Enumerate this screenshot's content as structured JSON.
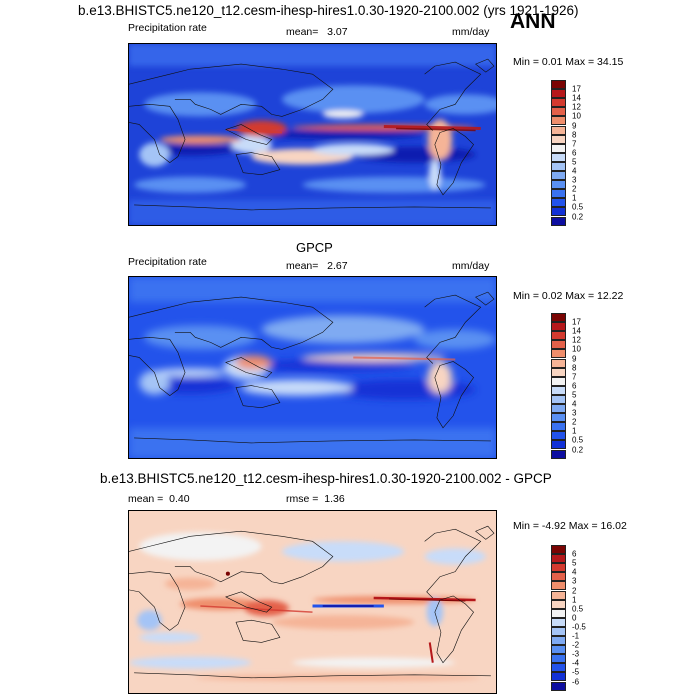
{
  "season": "ANN",
  "units": "mm/day",
  "palettes": {
    "absolute": [
      "#0d0ea0",
      "#1231d6",
      "#2353eb",
      "#3a72f0",
      "#5a90f2",
      "#7faaf2",
      "#a4c4f6",
      "#c8dcf9",
      "#f3f3f3",
      "#f8d5c2",
      "#f5b497",
      "#ef8e6c",
      "#e4614a",
      "#d33a2f",
      "#b5181b",
      "#7a0403"
    ],
    "difference": [
      "#0d0ea0",
      "#1231d6",
      "#2353eb",
      "#3a72f0",
      "#5a90f2",
      "#7faaf2",
      "#a4c4f6",
      "#c8dcf9",
      "#f3f3f3",
      "#f8d5c2",
      "#f5b497",
      "#ef8e6c",
      "#e4614a",
      "#d33a2f",
      "#b5181b",
      "#7a0403"
    ]
  },
  "panels": [
    {
      "title": "b.e13.BHISTC5.ne120_t12.cesm-ihesp-hires1.0.30-1920-2100.002 (yrs 1921-1926)",
      "left_label": "Precipitation rate",
      "stat_label": "mean=",
      "stat_value": "3.07",
      "right_label": "mm/day",
      "minmax": "Min =   0.01 Max =  34.15",
      "levels": [
        "17",
        "14",
        "12",
        "10",
        "9",
        "8",
        "7",
        "6",
        "5",
        "4",
        "3",
        "2",
        "1",
        "0.5",
        "0.2"
      ]
    },
    {
      "title": "GPCP",
      "left_label": "Precipitation rate",
      "stat_label": "mean=",
      "stat_value": "2.67",
      "right_label": "mm/day",
      "minmax": "Min =   0.02 Max =  12.22",
      "levels": [
        "17",
        "14",
        "12",
        "10",
        "9",
        "8",
        "7",
        "6",
        "5",
        "4",
        "3",
        "2",
        "1",
        "0.5",
        "0.2"
      ]
    },
    {
      "title": "b.e13.BHISTC5.ne120_t12.cesm-ihesp-hires1.0.30-1920-2100.002 - GPCP",
      "left_label": "mean =",
      "left_value": "0.40",
      "stat_label": "rmse =",
      "stat_value": "1.36",
      "minmax": "Min =  -4.92 Max =  16.02",
      "levels": [
        "6",
        "5",
        "4",
        "3",
        "2",
        "1",
        "0.5",
        "0",
        "-0.5",
        "-1",
        "-2",
        "-3",
        "-4",
        "-5",
        "-6"
      ]
    }
  ],
  "chart_data": [
    {
      "type": "heatmap",
      "title": "b.e13.BHISTC5.ne120_t12.cesm-ihesp-hires1.0.30-1920-2100.002 (yrs 1921-1926)",
      "variable": "Precipitation rate",
      "units": "mm/day",
      "mean": 3.07,
      "min": 0.01,
      "max": 34.15,
      "contour_levels": [
        0.2,
        0.5,
        1,
        2,
        3,
        4,
        5,
        6,
        7,
        8,
        9,
        10,
        12,
        14,
        17
      ]
    },
    {
      "type": "heatmap",
      "title": "GPCP",
      "variable": "Precipitation rate",
      "units": "mm/day",
      "mean": 2.67,
      "min": 0.02,
      "max": 12.22,
      "contour_levels": [
        0.2,
        0.5,
        1,
        2,
        3,
        4,
        5,
        6,
        7,
        8,
        9,
        10,
        12,
        14,
        17
      ]
    },
    {
      "type": "heatmap",
      "title": "b.e13.BHISTC5.ne120_t12.cesm-ihesp-hires1.0.30-1920-2100.002 - GPCP",
      "mean": 0.4,
      "rmse": 1.36,
      "min": -4.92,
      "max": 16.02,
      "contour_levels": [
        -6,
        -5,
        -4,
        -3,
        -2,
        -1,
        -0.5,
        0,
        0.5,
        1,
        2,
        3,
        4,
        5,
        6
      ]
    }
  ]
}
